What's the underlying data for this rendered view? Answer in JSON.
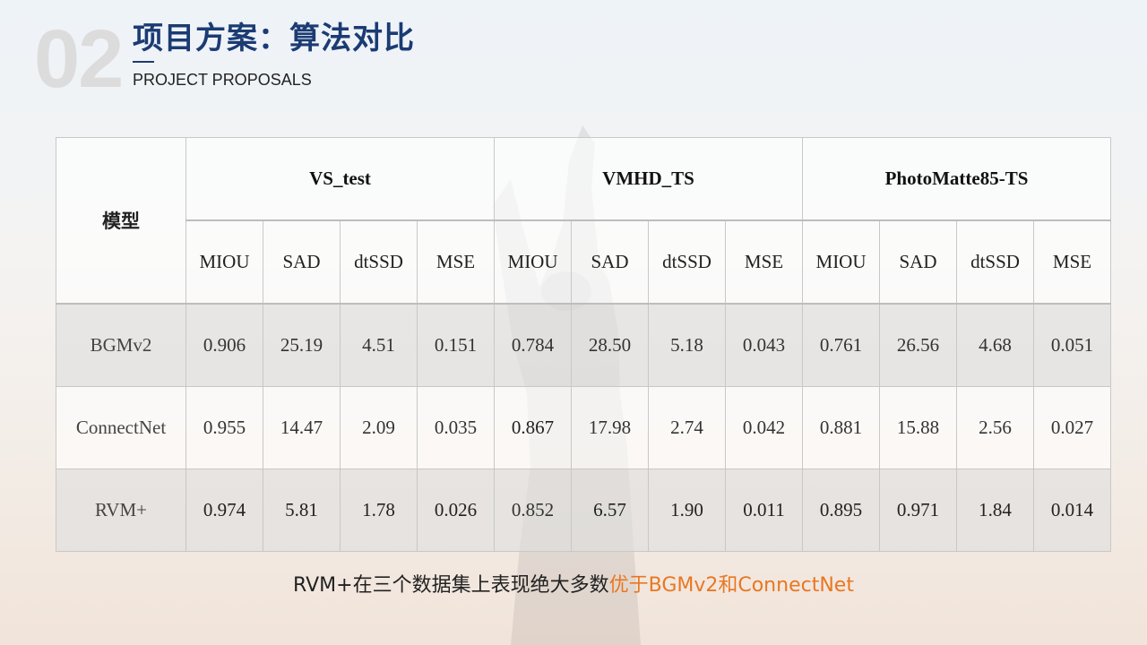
{
  "slide": {
    "number": "02",
    "title": "项目方案：算法对比",
    "subtitle": "PROJECT PROPOSALS"
  },
  "table": {
    "model_header": "模型",
    "datasets": [
      "VS_test",
      "VMHD_TS",
      "PhotoMatte85-TS"
    ],
    "metrics": [
      "MIOU",
      "SAD",
      "dtSSD",
      "MSE"
    ],
    "rows": [
      {
        "model": "BGMv2",
        "values": [
          "0.906",
          "25.19",
          "4.51",
          "0.151",
          "0.784",
          "28.50",
          "5.18",
          "0.043",
          "0.761",
          "26.56",
          "4.68",
          "0.051"
        ]
      },
      {
        "model": "ConnectNet",
        "values": [
          "0.955",
          "14.47",
          "2.09",
          "0.035",
          "0.867",
          "17.98",
          "2.74",
          "0.042",
          "0.881",
          "15.88",
          "2.56",
          "0.027"
        ]
      },
      {
        "model": "RVM+",
        "values": [
          "0.974",
          "5.81",
          "1.78",
          "0.026",
          "0.852",
          "6.57",
          "1.90",
          "0.011",
          "0.895",
          "0.971",
          "1.84",
          "0.014"
        ]
      }
    ]
  },
  "conclusion": {
    "text": "RVM+在三个数据集上表现绝大多数",
    "highlight": "优于BGMv2和ConnectNet",
    "highlight_color": "#e87722"
  },
  "colors": {
    "title": "#1b3b73",
    "number_watermark": "#dcdcdc"
  }
}
